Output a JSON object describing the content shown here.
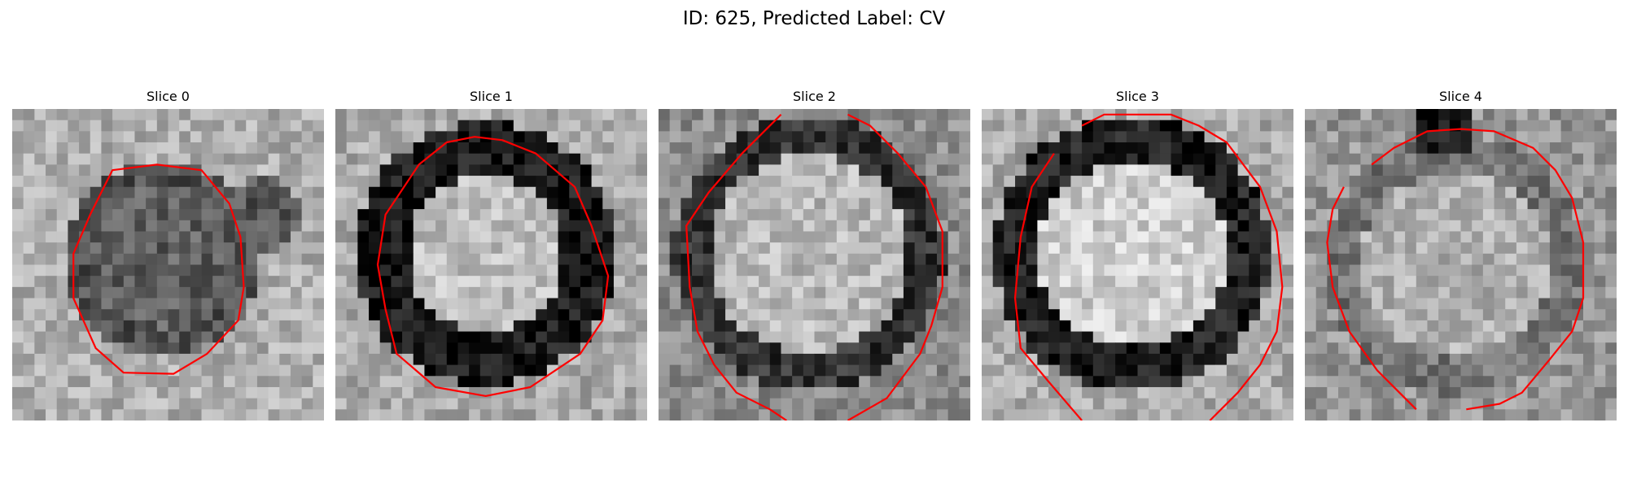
{
  "figure": {
    "title": "ID: 625, Predicted Label: CV"
  },
  "panels": [
    {
      "title": "Slice 0",
      "contour_color": "#ff0000"
    },
    {
      "title": "Slice 1",
      "contour_color": "#ff0000"
    },
    {
      "title": "Slice 2",
      "contour_color": "#ff0000"
    },
    {
      "title": "Slice 3",
      "contour_color": "#ff0000"
    },
    {
      "title": "Slice 4",
      "contour_color": "#ff0000"
    }
  ]
}
